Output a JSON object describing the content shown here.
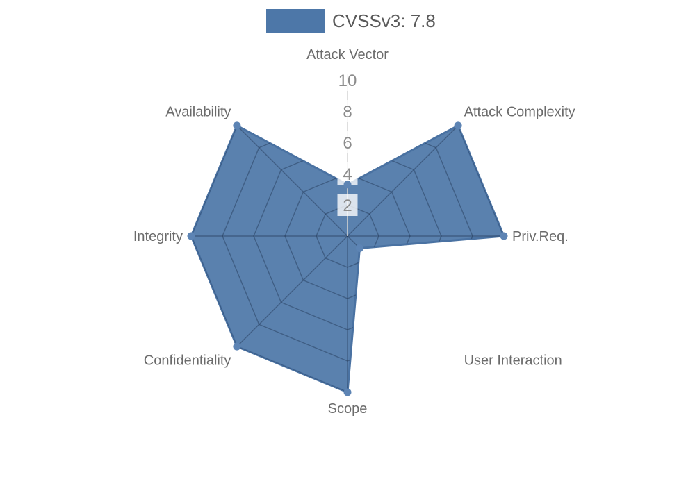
{
  "legend": {
    "label": "CVSSv3: 7.8",
    "swatch_color": "#4d77a8"
  },
  "chart_data": {
    "type": "radar",
    "title": "CVSSv3: 7.8",
    "axes": [
      "Attack Vector",
      "Attack Complexity",
      "Priv.Req.",
      "User Interaction",
      "Scope",
      "Confidentiality",
      "Integrity",
      "Availability"
    ],
    "series": [
      {
        "name": "CVSSv3: 7.8",
        "values": [
          3.3,
          10,
          10,
          1.1,
          10,
          10,
          10,
          10
        ]
      }
    ],
    "ticks": [
      2,
      4,
      6,
      8,
      10
    ],
    "range": [
      0,
      10
    ],
    "grid_shape": "polygon",
    "grid_visible_only_inside_fill": true,
    "legend_position": "top-center",
    "colors": {
      "fill": "#4d77a8",
      "fill_opacity": 0.93,
      "stroke": "#4a72a2",
      "marker": "#5d84b4",
      "grid_inner": "rgba(22,38,64,0.38)",
      "radius_axis_line": "#d6d6d6",
      "tick_text": "#8c8c8c",
      "tick_box": "rgba(255,255,255,0.78)",
      "axis_label": "#6b6b6b",
      "legend_text": "#5a5a5a"
    }
  }
}
